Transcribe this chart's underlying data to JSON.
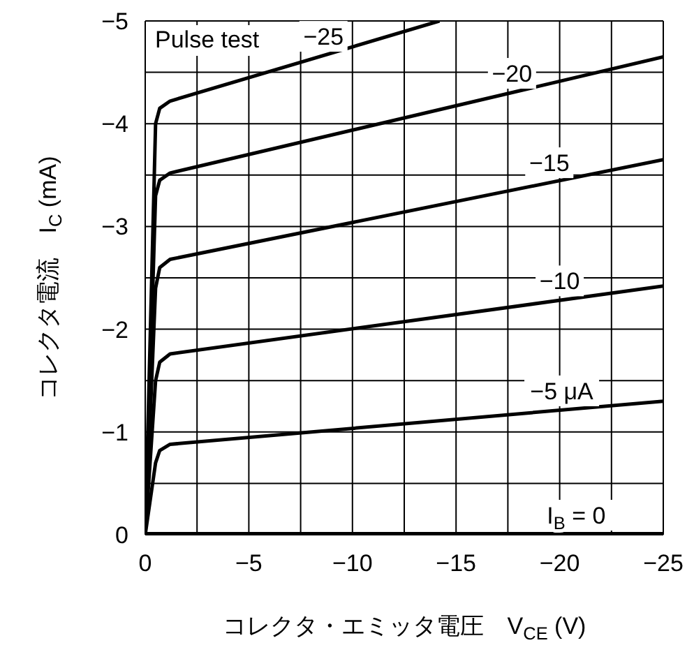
{
  "chart_data": {
    "type": "line",
    "xlabel": "コレクタ・エミッタ電圧　V$_{CE}$ (V)",
    "ylabel": "コレクタ電流　I$_{C}$ (mA)",
    "xlim": [
      0,
      -25
    ],
    "ylim": [
      0,
      -5
    ],
    "xticks": [
      0,
      {
        "value": -2.5,
        "label": null
      },
      {
        "value": -5,
        "label": "−5"
      },
      {
        "value": -7.5,
        "label": null
      },
      {
        "value": -10,
        "label": "−10"
      },
      {
        "value": -12.5,
        "label": null
      },
      {
        "value": -15,
        "label": "−15"
      },
      {
        "value": -17.5,
        "label": null
      },
      {
        "value": -20,
        "label": "−20"
      },
      {
        "value": -22.5,
        "label": null
      },
      {
        "value": -25,
        "label": "−25"
      }
    ],
    "yticks": [
      0,
      {
        "value": -0.5,
        "label": null
      },
      {
        "value": -1,
        "label": "−1"
      },
      {
        "value": -1.5,
        "label": null
      },
      {
        "value": -2,
        "label": "−2"
      },
      {
        "value": -2.5,
        "label": null
      },
      {
        "value": -3,
        "label": "−3"
      },
      {
        "value": -3.5,
        "label": null
      },
      {
        "value": -4,
        "label": "−4"
      },
      {
        "value": -4.5,
        "label": null
      },
      {
        "value": -5,
        "label": "−5"
      }
    ],
    "grid": true,
    "marker": "none",
    "line_style": "solid",
    "series": [
      {
        "color": "#000000",
        "x": [
          0,
          -25
        ],
        "values": [
          0,
          0
        ]
      },
      {
        "color": "#000000",
        "x": [
          0,
          -0.5,
          -0.7,
          -1.2,
          -25
        ],
        "values": [
          0,
          -0.7,
          -0.82,
          -0.88,
          -1.3
        ]
      },
      {
        "color": "#000000",
        "x": [
          0,
          -0.5,
          -0.7,
          -1.2,
          -25
        ],
        "values": [
          0,
          -1.5,
          -1.68,
          -1.76,
          -2.42
        ]
      },
      {
        "color": "#000000",
        "x": [
          0,
          -0.5,
          -0.7,
          -1.2,
          -25
        ],
        "values": [
          0,
          -2.4,
          -2.6,
          -2.68,
          -3.65
        ]
      },
      {
        "color": "#000000",
        "x": [
          0,
          -0.5,
          -0.7,
          -1.2,
          -25
        ],
        "values": [
          0,
          -3.3,
          -3.45,
          -3.52,
          -4.65
        ]
      },
      {
        "color": "#000000",
        "x": [
          0,
          -0.5,
          -0.7,
          -1.2,
          -14.2
        ],
        "values": [
          0,
          -4.0,
          -4.15,
          -4.22,
          -5
        ]
      }
    ],
    "annotations": [
      "Pulse test",
      {
        "text": "−25",
        "x": -8.6,
        "y": -4.66
      },
      {
        "text": "−20",
        "x": -17.7,
        "y": -4.3
      },
      {
        "text": "−15",
        "x": -19.5,
        "y": -3.43
      },
      {
        "text": "−10",
        "x": -20,
        "y": -2.28
      },
      {
        "text": "−5 μA",
        "x": -20.1,
        "y": -1.21
      },
      {
        "text": "I$_{B}$ = 0",
        "x": -20.8,
        "y": 0
      }
    ]
  }
}
